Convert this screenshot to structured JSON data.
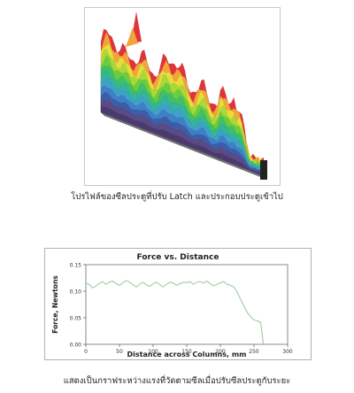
{
  "figure1": {
    "caption": "โปรไฟล์ของซีลประตูที่ปรับ Latch และประกอบประตูเข้าไป"
  },
  "figure2": {
    "caption": "แสดงเป็นกราฟระหว่างแรงที่วัดตามซีลเมื่อปรับซีลประตูกับระยะ"
  },
  "chart_data": {
    "type": "line",
    "title": "Force vs. Distance",
    "xlabel": "Distance across Columns, mm",
    "ylabel": "Force, Newtons",
    "xlim": [
      0,
      300
    ],
    "ylim": [
      0,
      0.15
    ],
    "xticks": [
      "0",
      "50",
      "100",
      "150",
      "200",
      "250",
      "300"
    ],
    "yticks": [
      "0.00",
      "0.05",
      "0.10",
      "0.15"
    ],
    "grid": false,
    "line_color": "#a9cfa7",
    "series": [
      {
        "x": [
          0,
          5,
          10,
          15,
          20,
          25,
          30,
          35,
          40,
          45,
          50,
          55,
          60,
          65,
          70,
          75,
          80,
          85,
          90,
          95,
          100,
          105,
          110,
          115,
          120,
          125,
          130,
          135,
          140,
          145,
          150,
          155,
          160,
          165,
          170,
          175,
          180,
          185,
          190,
          195,
          200,
          205,
          210,
          215,
          220,
          225,
          230,
          235,
          240,
          245,
          250,
          255,
          260,
          262,
          264
        ],
        "values": [
          0.115,
          0.113,
          0.106,
          0.11,
          0.115,
          0.118,
          0.113,
          0.117,
          0.119,
          0.114,
          0.111,
          0.116,
          0.12,
          0.117,
          0.112,
          0.108,
          0.113,
          0.117,
          0.112,
          0.109,
          0.114,
          0.117,
          0.112,
          0.108,
          0.113,
          0.117,
          0.115,
          0.111,
          0.114,
          0.117,
          0.116,
          0.118,
          0.113,
          0.117,
          0.118,
          0.115,
          0.119,
          0.114,
          0.11,
          0.113,
          0.116,
          0.118,
          0.113,
          0.111,
          0.108,
          0.098,
          0.085,
          0.072,
          0.06,
          0.052,
          0.046,
          0.044,
          0.041,
          0.02,
          0.0
        ]
      }
    ]
  },
  "surface3d": {
    "layer_colors": [
      "#4b3a6e",
      "#5a4a86",
      "#3d5da6",
      "#3f7fc8",
      "#3fa0c8",
      "#35b3a0",
      "#3fbf68",
      "#6ccc3e",
      "#a8d83a",
      "#e7dc3a",
      "#f2a43a",
      "#e0343a"
    ],
    "base_color": "#6f6f6f"
  }
}
